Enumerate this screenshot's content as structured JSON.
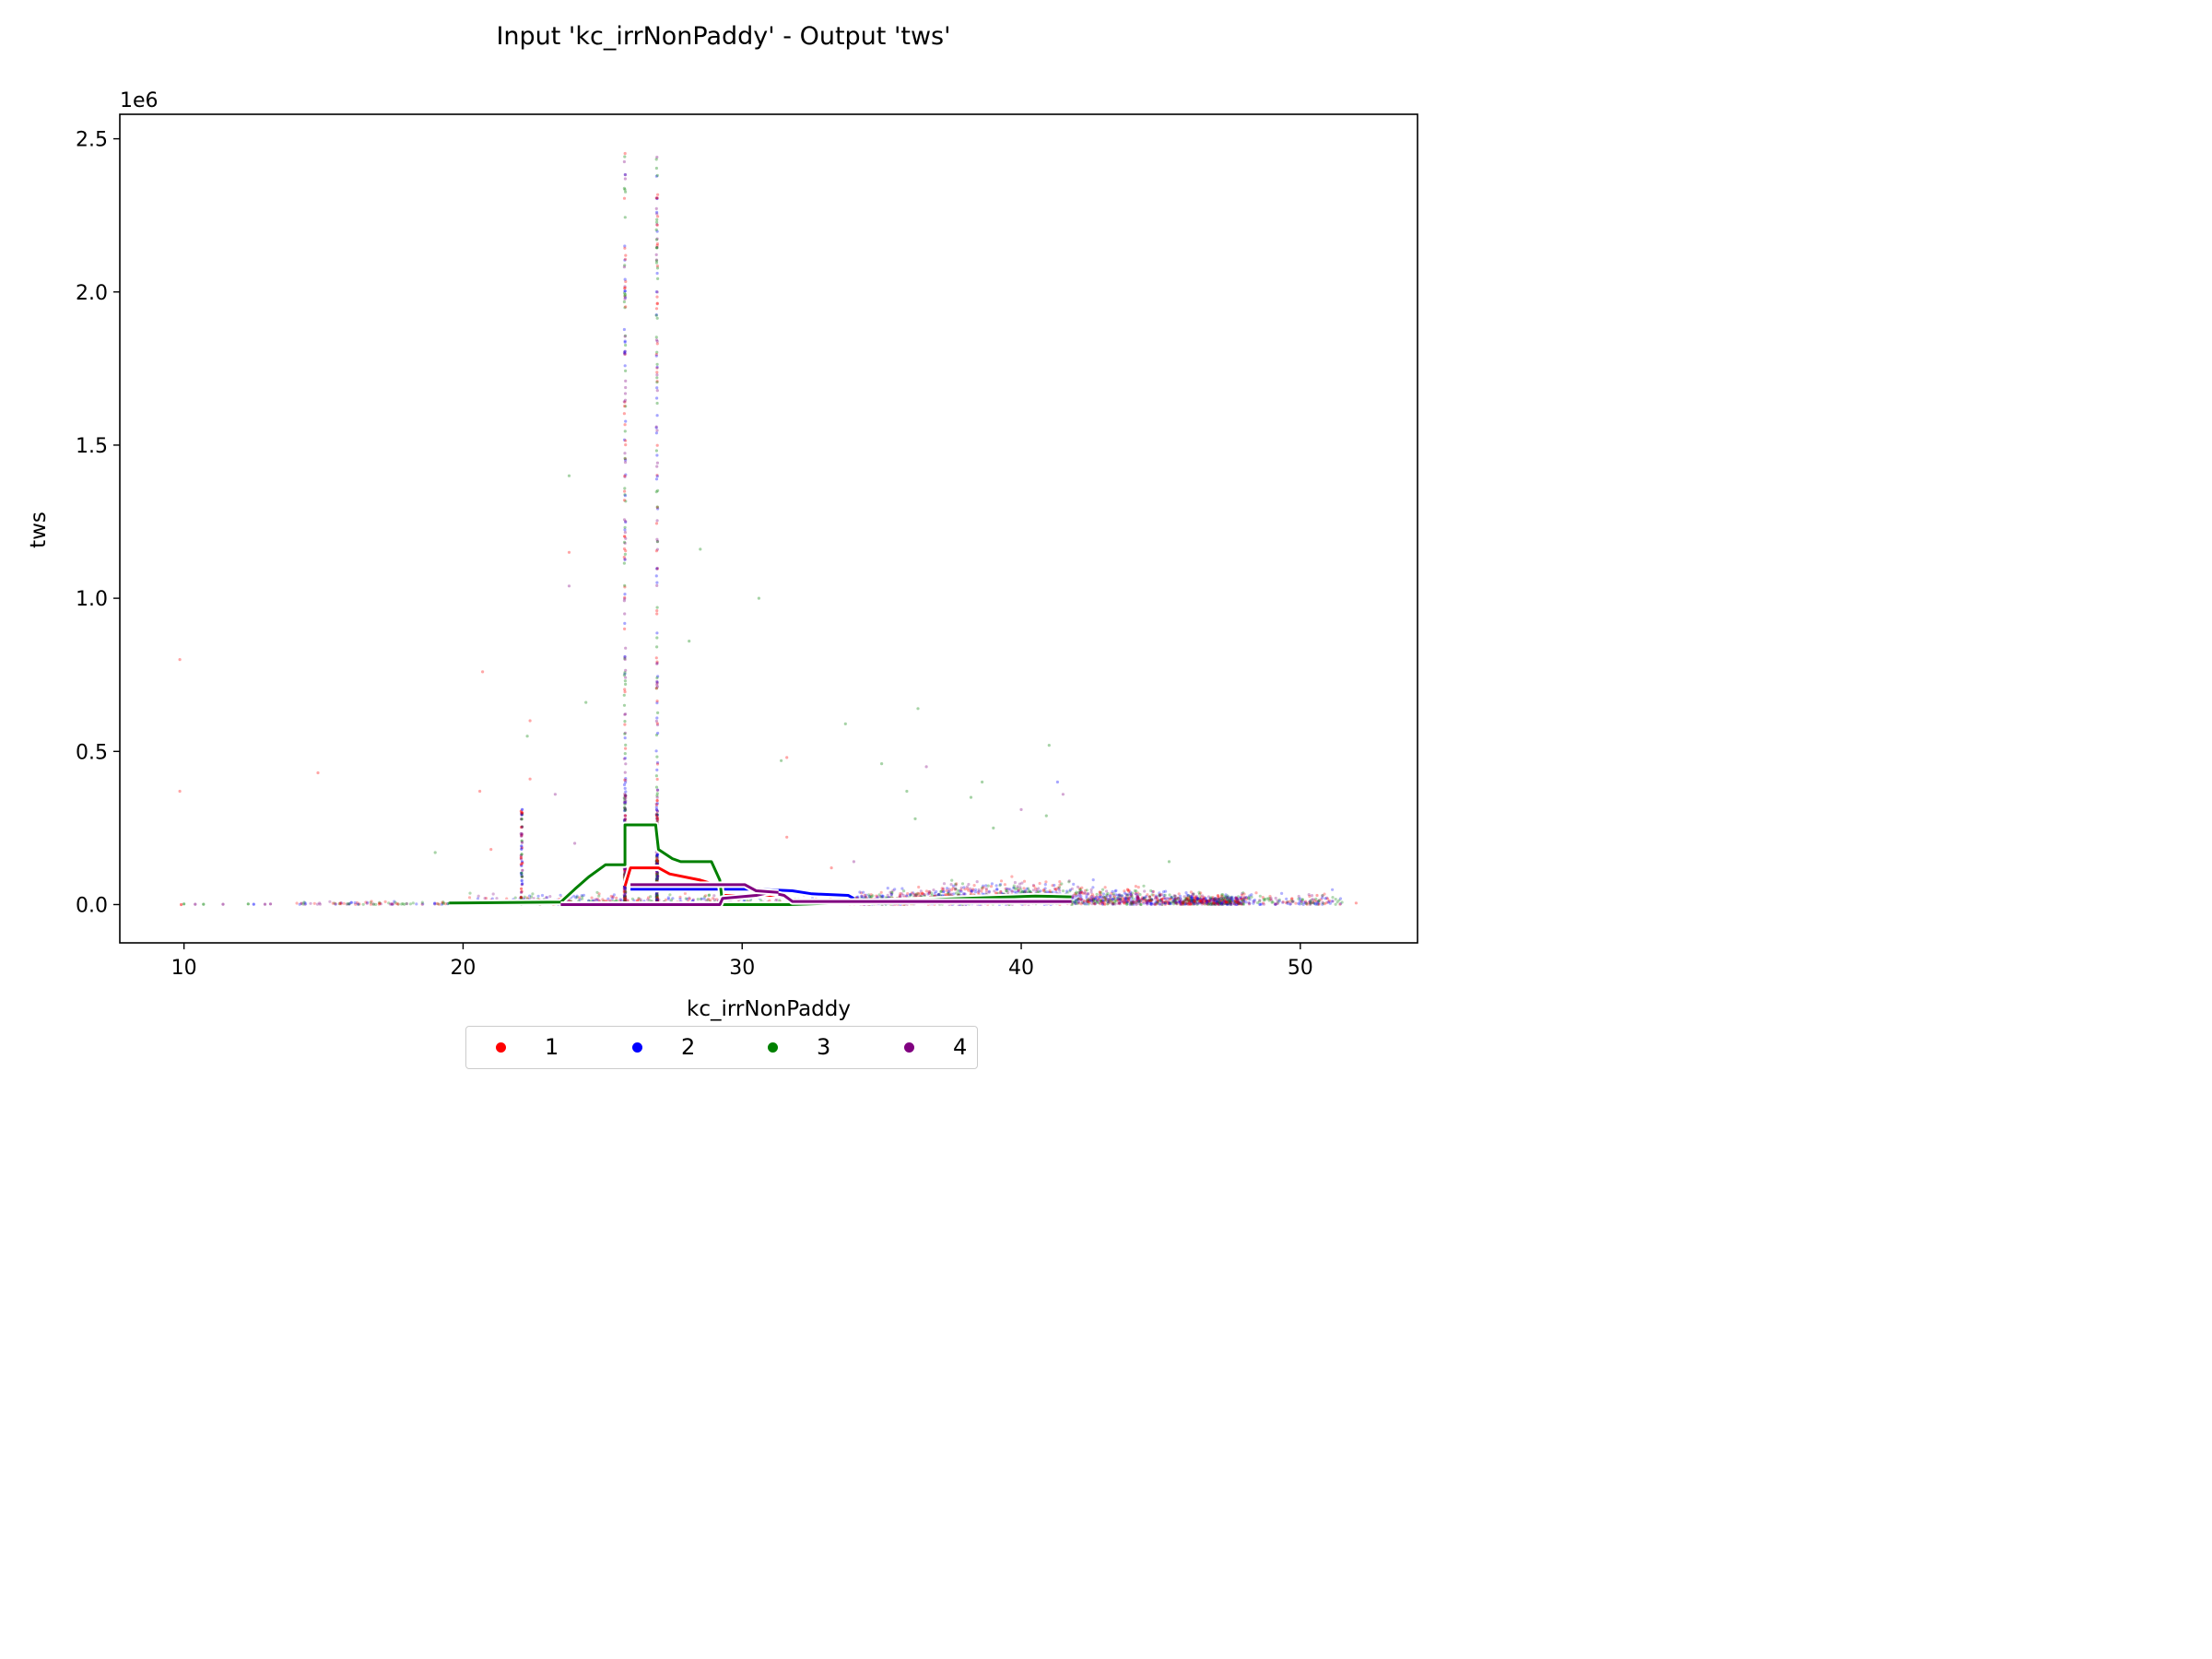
{
  "chart_data": {
    "type": "scatter",
    "title": "Input 'kc_irrNonPaddy' - Output 'tws'",
    "xlabel": "kc_irrNonPaddy",
    "ylabel": "tws",
    "y_offset_label": "1e6",
    "xlim": [
      7.7,
      54.2
    ],
    "ylim": [
      -0.125,
      2.58
    ],
    "xticks": [
      10,
      20,
      30,
      40,
      50
    ],
    "yticks": [
      0.0,
      0.5,
      1.0,
      1.5,
      2.0,
      2.5
    ],
    "xtick_labels": [
      "10",
      "20",
      "30",
      "40",
      "50"
    ],
    "ytick_labels": [
      "0.0",
      "0.5",
      "1.0",
      "1.5",
      "2.0",
      "2.5"
    ],
    "grid": false,
    "legend_placement": "bottom-center, below axes",
    "series": [
      {
        "name": "1",
        "color": "#ff0000",
        "mean_line": [
          [
            25.8,
            0.06
          ],
          [
            26.0,
            0.12
          ],
          [
            27.0,
            0.12
          ],
          [
            27.4,
            0.1
          ],
          [
            28.5,
            0.08
          ],
          [
            29.2,
            0.06
          ],
          [
            29.3,
            0.03
          ],
          [
            31.5,
            0.03
          ]
        ]
      },
      {
        "name": "2",
        "color": "#0000ff",
        "mean_line": [
          [
            26.0,
            0.05
          ],
          [
            29.5,
            0.05
          ],
          [
            30.5,
            0.05
          ],
          [
            31.8,
            0.045
          ],
          [
            32.5,
            0.035
          ],
          [
            33.8,
            0.03
          ],
          [
            34.0,
            0.02
          ]
        ]
      },
      {
        "name": "3",
        "color": "#008000",
        "mean_line": [
          [
            19.5,
            0.005
          ],
          [
            23.5,
            0.008
          ],
          [
            24.0,
            0.05
          ],
          [
            24.5,
            0.09
          ],
          [
            25.1,
            0.13
          ],
          [
            25.8,
            0.13
          ],
          [
            25.8,
            0.26
          ],
          [
            26.9,
            0.26
          ],
          [
            27.0,
            0.18
          ],
          [
            27.5,
            0.15
          ],
          [
            27.8,
            0.14
          ],
          [
            28.9,
            0.14
          ],
          [
            29.2,
            0.08
          ],
          [
            29.3,
            0.0
          ],
          [
            31.7,
            0.0
          ],
          [
            38.0,
            0.02
          ],
          [
            40.5,
            0.028
          ],
          [
            41.8,
            0.025
          ]
        ]
      },
      {
        "name": "4",
        "color": "#800080",
        "mean_line": [
          [
            23.5,
            0.0
          ],
          [
            29.2,
            0.0
          ],
          [
            29.3,
            0.02
          ],
          [
            30.5,
            0.03
          ],
          [
            31.0,
            0.04
          ],
          [
            31.5,
            0.03
          ],
          [
            31.8,
            0.01
          ],
          [
            38.0,
            0.01
          ],
          [
            41.8,
            0.01
          ]
        ],
        "mean_line_upper": [
          [
            26.0,
            0.065
          ],
          [
            30.1,
            0.065
          ],
          [
            30.5,
            0.045
          ],
          [
            31.3,
            0.04
          ]
        ]
      }
    ]
  },
  "legend": {
    "items": [
      {
        "label": "1",
        "color": "#ff0000"
      },
      {
        "label": "2",
        "color": "#0000ff"
      },
      {
        "label": "3",
        "color": "#008000"
      },
      {
        "label": "4",
        "color": "#800080"
      }
    ]
  }
}
